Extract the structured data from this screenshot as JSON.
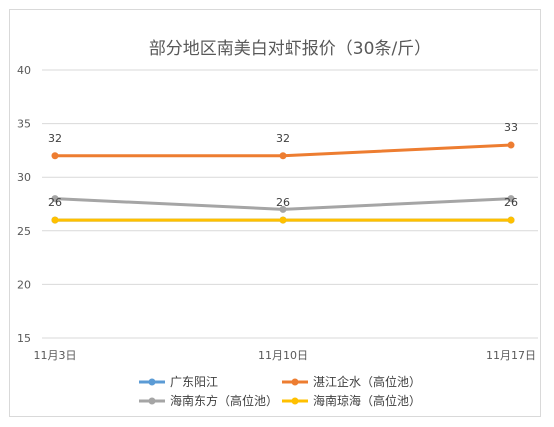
{
  "chart_data": {
    "type": "line",
    "title": "部分地区南美白对虾报价（30条/斤）",
    "xlabel": "",
    "ylabel": "",
    "categories": [
      "11月3日",
      "11月10日",
      "11月17日"
    ],
    "ylim": [
      15,
      40
    ],
    "yticks": [
      15,
      20,
      25,
      30,
      35,
      40
    ],
    "grid": true,
    "legend_position": "bottom",
    "series": [
      {
        "name": "广东阳江",
        "color": "#5b9bd5",
        "values": [
          26,
          26,
          26
        ],
        "labels": [
          null,
          null,
          null
        ]
      },
      {
        "name": "湛江企水（高位池）",
        "color": "#ed7d31",
        "values": [
          32,
          32,
          33
        ],
        "labels": [
          "32",
          "32",
          "33"
        ]
      },
      {
        "name": "海南东方（高位池）",
        "color": "#a5a5a5",
        "values": [
          28,
          27,
          28
        ],
        "labels": [
          null,
          null,
          null
        ]
      },
      {
        "name": "海南琼海（高位池）",
        "color": "#ffc000",
        "values": [
          26,
          26,
          26
        ],
        "labels": [
          "26",
          "26",
          "26"
        ]
      }
    ]
  }
}
